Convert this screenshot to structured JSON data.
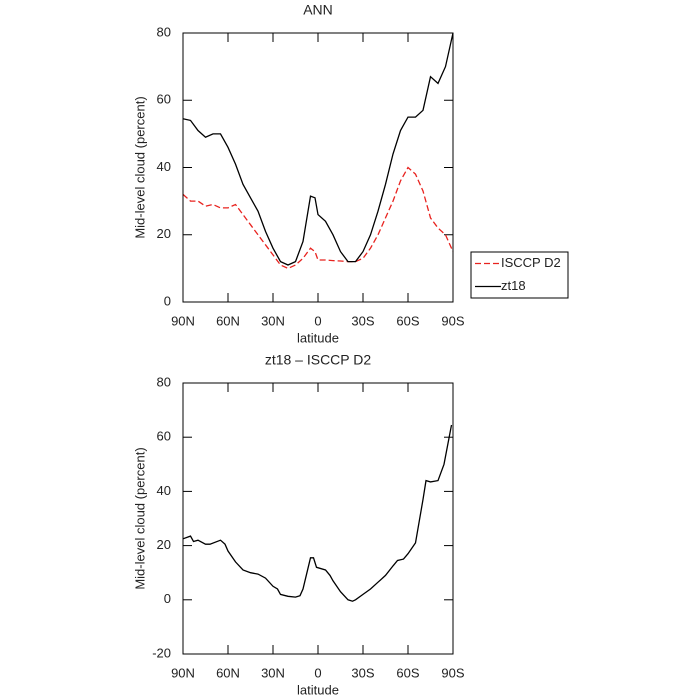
{
  "chart_data": [
    {
      "type": "line",
      "title": "ANN",
      "xlabel": "latitude",
      "ylabel": "Mid-level cloud (percent)",
      "x": [
        90,
        85,
        80,
        75,
        70,
        65,
        60,
        55,
        50,
        45,
        40,
        35,
        30,
        25,
        20,
        15,
        10,
        5,
        2,
        0,
        -5,
        -10,
        -15,
        -20,
        -25,
        -30,
        -35,
        -40,
        -45,
        -50,
        -55,
        -60,
        -65,
        -70,
        -75,
        -80,
        -85,
        -90
      ],
      "series": [
        {
          "name": "ISCCP D2",
          "color": "#e8231f",
          "dashed": true,
          "values": [
            32,
            30,
            30,
            28.5,
            29,
            28,
            28,
            29,
            26,
            23,
            20,
            17,
            14,
            11,
            10,
            11,
            13,
            16,
            15,
            12.5,
            12.5,
            12.3,
            12.2,
            12,
            12,
            13,
            16,
            20,
            25,
            30,
            36,
            40,
            38,
            33,
            25,
            22,
            20,
            15
          ]
        },
        {
          "name": "zt18",
          "color": "#000000",
          "dashed": false,
          "values": [
            54.5,
            54,
            51,
            49,
            50,
            50,
            46,
            41,
            35,
            31,
            27,
            21,
            16,
            12,
            11,
            12,
            18,
            31.5,
            31,
            26,
            24,
            20,
            15,
            12,
            12,
            15,
            20,
            27,
            35,
            44,
            51,
            55,
            55,
            57,
            67,
            65,
            70,
            80
          ]
        }
      ],
      "xlim": [
        90,
        -90
      ],
      "xticks": [
        {
          "value": 90,
          "label": "90N"
        },
        {
          "value": 60,
          "label": "60N"
        },
        {
          "value": 30,
          "label": "30N"
        },
        0,
        {
          "value": -30,
          "label": "30S"
        },
        {
          "value": -60,
          "label": "60S"
        },
        {
          "value": -90,
          "label": "90S"
        }
      ],
      "ylim": [
        0,
        80
      ],
      "yticks": [
        0,
        20,
        40,
        60,
        80
      ],
      "legend": "outside right"
    },
    {
      "type": "line",
      "title": "zt18 – ISCCP D2",
      "xlabel": "latitude",
      "ylabel": "Mid-level cloud (percent)",
      "x": [
        90,
        85,
        83,
        80,
        75,
        72,
        65,
        62,
        60,
        55,
        50,
        45,
        40,
        35,
        30,
        27,
        25,
        20,
        15,
        12,
        10,
        5,
        3,
        1,
        -5,
        -8,
        -10,
        -15,
        -20,
        -23,
        -25,
        -30,
        -35,
        -40,
        -45,
        -50,
        -53,
        -57,
        -60,
        -65,
        -70,
        -72,
        -75,
        -80,
        -84,
        -89
      ],
      "series": [
        {
          "color": "#000000",
          "dashed": false,
          "values": [
            22.5,
            23.5,
            21.5,
            22,
            20.5,
            20.5,
            22,
            20.5,
            18,
            14,
            11,
            10,
            9.5,
            8,
            5,
            4,
            2,
            1.3,
            1,
            1.5,
            4,
            15.5,
            15.5,
            12,
            11,
            9,
            7,
            3,
            0,
            -0.5,
            0,
            2,
            4,
            6.5,
            9,
            12.5,
            14.5,
            15,
            17,
            21,
            37,
            44,
            43.5,
            44,
            50,
            64.5
          ]
        }
      ],
      "xlim": [
        90,
        -90
      ],
      "xticks": [
        {
          "value": 90,
          "label": "90N"
        },
        {
          "value": 60,
          "label": "60N"
        },
        {
          "value": 30,
          "label": "30N"
        },
        0,
        {
          "value": -30,
          "label": "30S"
        },
        {
          "value": -60,
          "label": "60S"
        },
        {
          "value": -90,
          "label": "90S"
        }
      ],
      "ylim": [
        -20,
        80
      ],
      "yticks": [
        -20,
        0,
        20,
        40,
        60,
        80
      ]
    }
  ]
}
